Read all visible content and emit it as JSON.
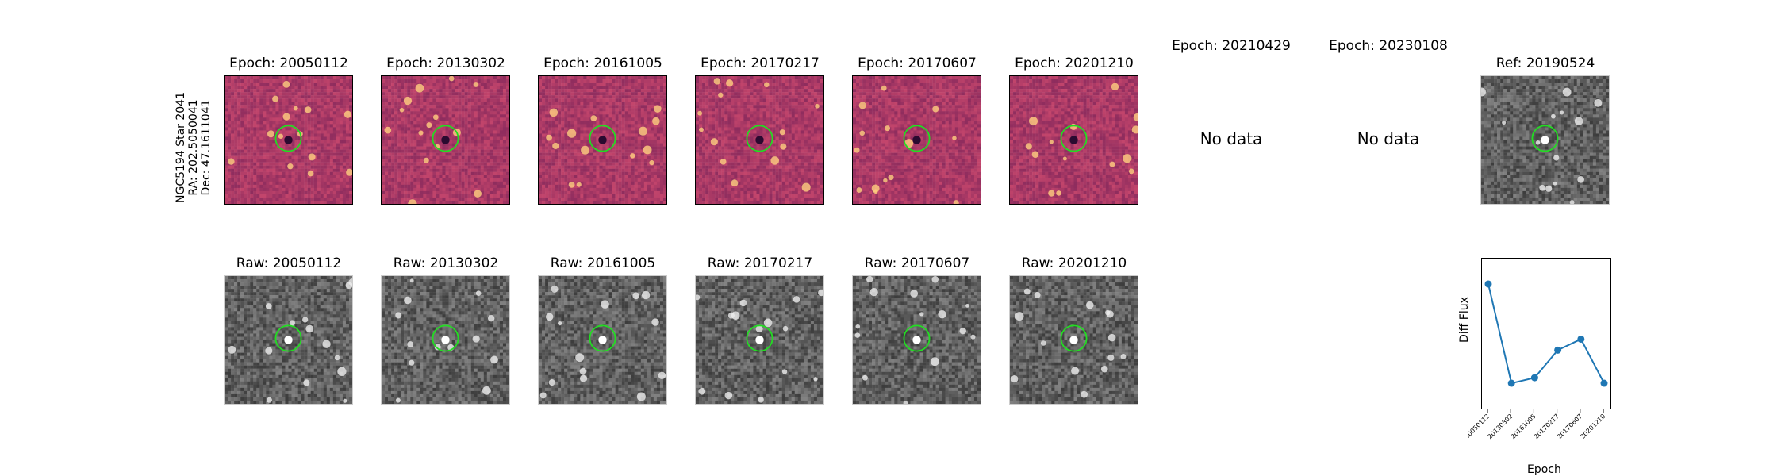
{
  "side_label": {
    "line1": "NGC5194 Star 2041",
    "line2": "RA: 202.5050041",
    "line3": "Dec: 47.1611041"
  },
  "top_row": [
    {
      "title": "Epoch: 20050112",
      "has_data": true
    },
    {
      "title": "Epoch: 20130302",
      "has_data": true
    },
    {
      "title": "Epoch: 20161005",
      "has_data": true
    },
    {
      "title": "Epoch: 20170217",
      "has_data": true
    },
    {
      "title": "Epoch: 20170607",
      "has_data": true
    },
    {
      "title": "Epoch: 20201210",
      "has_data": true
    },
    {
      "title": "Epoch: 20210429",
      "has_data": false,
      "message": "No data"
    },
    {
      "title": "Epoch: 20230108",
      "has_data": false,
      "message": "No data"
    }
  ],
  "reference": {
    "title": "Ref: 20190524"
  },
  "bottom_row": [
    {
      "title": "Raw: 20050112"
    },
    {
      "title": "Raw: 20130302"
    },
    {
      "title": "Raw: 20161005"
    },
    {
      "title": "Raw: 20170217"
    },
    {
      "title": "Raw: 20170607"
    },
    {
      "title": "Raw: 20201210"
    }
  ],
  "colors": {
    "diff_base": "#a8407a",
    "circle": "#22dd22",
    "line": "#1f77b4"
  },
  "chart_data": {
    "type": "line",
    "x": [
      "20050112",
      "20130302",
      "20161005",
      "20170217",
      "20170607",
      "20201210"
    ],
    "series": [
      {
        "values": [
          0.95,
          0.05,
          0.1,
          0.35,
          0.45,
          0.05
        ]
      }
    ],
    "xlabel": "Epoch",
    "ylabel": "Diff Flux",
    "ylim": [
      0,
      1
    ]
  }
}
